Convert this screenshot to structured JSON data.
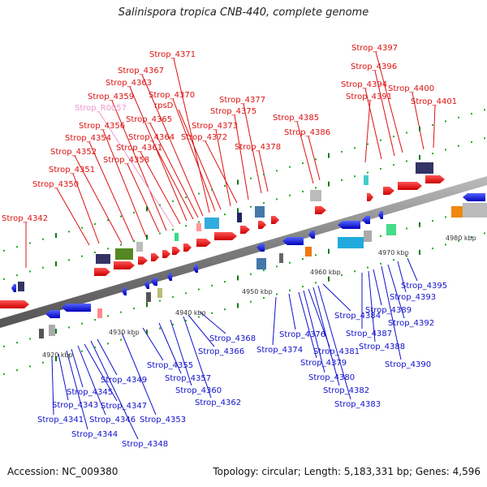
{
  "title": "Salinispora tropica CNB-440, complete genome",
  "footer": {
    "accession": "Accession: NC_009380",
    "summary": "Topology: circular; Length: 5,183,331 bp; Genes: 4,596"
  },
  "colors": {
    "forward_label": "#dd1111",
    "reverse_label": "#1111cc",
    "rna_label": "#ee99cc",
    "backbone": "#888888",
    "dots": "#22aa22"
  },
  "kbp_ticks": [
    "4920 kbp",
    "4930 kbp",
    "4940 kbp",
    "4950 kbp",
    "4960 kbp",
    "4970 kbp",
    "4980 kbp"
  ],
  "forward_genes": [
    "Strop_4342",
    "Strop_4350",
    "Strop_4351",
    "Strop_4352",
    "Strop_4354",
    "Strop_4356",
    "Strop_4358",
    "Strop_4359",
    "Strop_R0057",
    "Strop_4361",
    "Strop_4363",
    "Strop_4364",
    "Strop_4365",
    "Strop_4367",
    "Strop_4371",
    "Strop_4370",
    "rpsD",
    "Strop_4373",
    "Strop_4372",
    "Strop_4375",
    "Strop_4377",
    "Strop_4378",
    "Strop_4385",
    "Strop_4386",
    "Strop_4391",
    "Strop_4394",
    "Strop_4396",
    "Strop_4397",
    "Strop_4400",
    "Strop_4401"
  ],
  "reverse_genes": [
    "Strop_4341",
    "Strop_4343",
    "Strop_4344",
    "Strop_4345",
    "Strop_4346",
    "Strop_4347",
    "Strop_4348",
    "Strop_4349",
    "Strop_4353",
    "Strop_4355",
    "Strop_4357",
    "Strop_4360",
    "Strop_4362",
    "Strop_4366",
    "Strop_4368",
    "Strop_4374",
    "Strop_4376",
    "Strop_4379",
    "Strop_4380",
    "Strop_4381",
    "Strop_4382",
    "Strop_4383",
    "Strop_4384",
    "Strop_4387",
    "Strop_4388",
    "Strop_4389",
    "Strop_4390",
    "Strop_4392",
    "Strop_4393",
    "Strop_4395"
  ]
}
